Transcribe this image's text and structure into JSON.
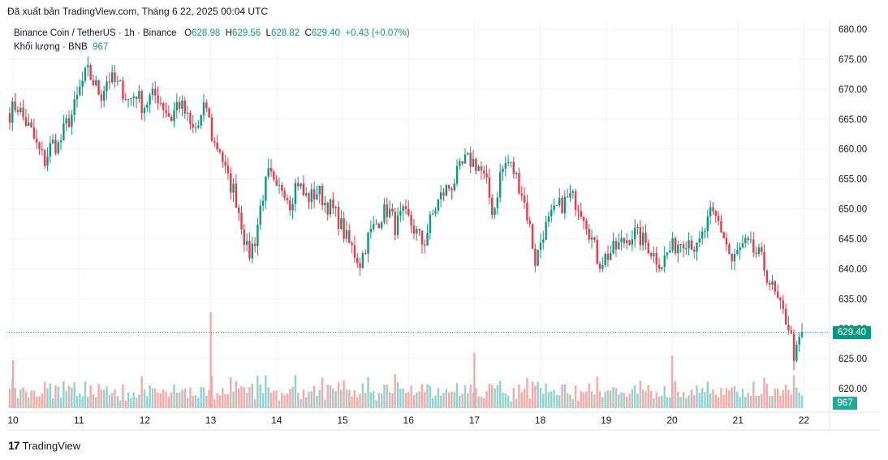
{
  "caption": "Đã xuất bản TradingView.com, Tháng 6 22, 2025 00:04 UTC",
  "legend": {
    "symbol": "Binance Coin / TetherUS · 1h · Binance",
    "o_label": "O",
    "o_value": "628.98",
    "h_label": "H",
    "h_value": "629.56",
    "l_label": "L",
    "l_value": "628.82",
    "c_label": "C",
    "c_value": "629.40",
    "change": "+0.43 (+0.07%)",
    "volume_label": "Khối lượng · BNB",
    "volume_value": "967"
  },
  "last_price_label": "629.40",
  "volume_label_tag": "967",
  "footer": {
    "logo_mark": "17",
    "brand": "TradingView"
  },
  "colors": {
    "up": "#089981",
    "down": "#f23645",
    "vol_up": "#92d2cc",
    "vol_down": "#f7a9a7",
    "grid": "#f0f3fa"
  },
  "chart_data": {
    "type": "candlestick",
    "symbol": "Binance Coin / TetherUS",
    "interval": "1h",
    "y_ticks": [
      "680.00",
      "675.00",
      "670.00",
      "665.00",
      "660.00",
      "655.00",
      "650.00",
      "645.00",
      "640.00",
      "635.00",
      "630.00",
      "625.00",
      "620.00"
    ],
    "ylim": [
      617.5,
      681
    ],
    "x_ticks": [
      "10",
      "11",
      "12",
      "13",
      "14",
      "15",
      "16",
      "17",
      "18",
      "19",
      "20",
      "21",
      "22"
    ],
    "last_close": 629.4,
    "close_path": [
      666.0,
      667.5,
      665.0,
      663.0,
      660.0,
      658.0,
      661.0,
      660.5,
      664.0,
      666.0,
      670.0,
      673.0,
      671.0,
      669.0,
      672.0,
      671.0,
      670.0,
      668.0,
      669.5,
      667.0,
      668.5,
      669.0,
      667.0,
      665.0,
      668.0,
      666.0,
      663.0,
      664.0,
      667.5,
      661.0,
      660.0,
      655.0,
      653.0,
      648.0,
      642.0,
      645.0,
      652.0,
      656.0,
      652.5,
      654.0,
      651.0,
      655.0,
      652.0,
      652.0,
      653.0,
      651.0,
      650.0,
      648.0,
      645.0,
      643.0,
      641.0,
      645.0,
      647.0,
      649.0,
      650.0,
      647.0,
      649.0,
      648.0,
      646.0,
      644.0,
      648.0,
      651.0,
      653.0,
      654.0,
      656.0,
      658.0,
      658.0,
      657.0,
      654.0,
      649.0,
      656.0,
      658.0,
      656.0,
      653.0,
      648.0,
      641.0,
      646.0,
      648.0,
      650.0,
      651.0,
      652.0,
      651.0,
      649.0,
      645.0,
      641.0,
      642.0,
      643.0,
      644.0,
      645.0,
      646.0,
      645.0,
      644.0,
      642.0,
      641.0,
      643.0,
      644.0,
      645.0,
      645.0,
      643.0,
      646.0,
      649.0,
      648.0,
      645.0,
      641.0,
      643.0,
      644.0,
      643.0,
      642.0,
      639.0,
      636.0,
      633.0,
      631.0,
      625.0,
      629.4
    ],
    "volume": {
      "label": "Khối lượng · BNB",
      "last": 967,
      "peaks": [
        {
          "x_tick": "13",
          "relative": 1.0
        },
        {
          "x_tick": "17",
          "relative": 0.58
        },
        {
          "x_tick": "20",
          "relative": 0.55
        },
        {
          "x_tick": "10",
          "relative": 0.5
        }
      ]
    }
  }
}
